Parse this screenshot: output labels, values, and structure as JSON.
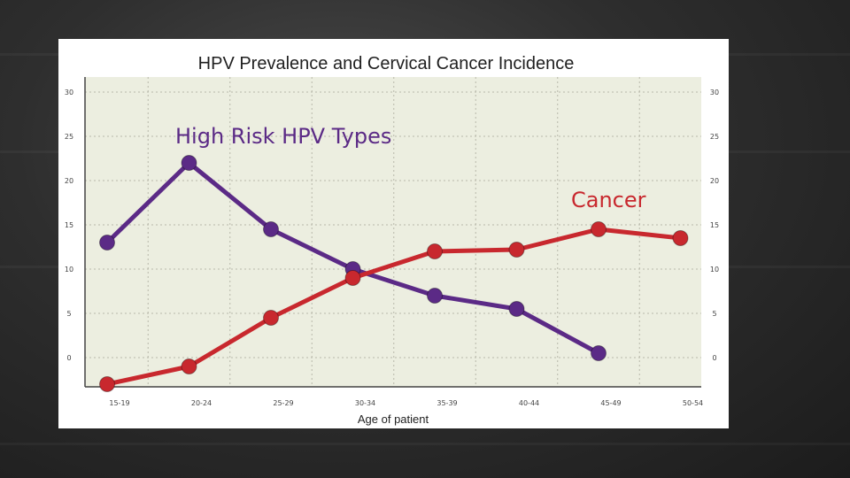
{
  "chart_data": {
    "type": "line",
    "title": "HPV Prevalence and Cervical Cancer Incidence",
    "xlabel": "Age of patient",
    "categories": [
      "15-19",
      "20-24",
      "25-29",
      "30-34",
      "35-39",
      "40-44",
      "45-49",
      "50-54"
    ],
    "ylim": [
      -3.5,
      32
    ],
    "yticks": [
      0,
      5,
      10,
      15,
      20,
      25,
      30
    ],
    "grid": true,
    "series": [
      {
        "name": "High Risk HPV Types",
        "color": "#5b2a86",
        "x": [
          0,
          1,
          2,
          3,
          4,
          5,
          6
        ],
        "values": [
          13,
          22,
          14.5,
          10,
          7,
          5.5,
          0.5
        ]
      },
      {
        "name": "Cancer",
        "color": "#c8282e",
        "x": [
          0,
          1,
          2,
          3,
          4,
          5,
          6,
          7
        ],
        "values": [
          -3,
          -1,
          4.5,
          9,
          12,
          12.2,
          14.5,
          13.5
        ]
      }
    ]
  }
}
